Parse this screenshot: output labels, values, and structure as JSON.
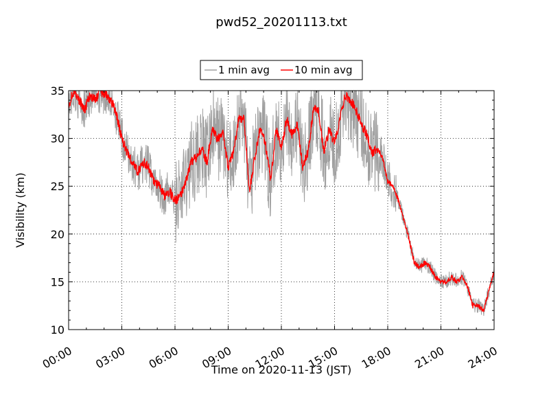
{
  "chart_data": {
    "type": "line",
    "title": "pwd52_20201113.txt",
    "xlabel": "Time on 2020-11-13 (JST)",
    "ylabel": "Visibility (km)",
    "x_unit": "hours",
    "xlim": [
      0,
      24
    ],
    "ylim": [
      10,
      35
    ],
    "x_ticks": [
      0,
      3,
      6,
      9,
      12,
      15,
      18,
      21,
      24
    ],
    "x_tick_labels": [
      "00:00",
      "03:00",
      "06:00",
      "09:00",
      "12:00",
      "15:00",
      "18:00",
      "21:00",
      "24:00"
    ],
    "y_ticks": [
      10,
      15,
      20,
      25,
      30,
      35
    ],
    "y_tick_labels": [
      "10",
      "15",
      "20",
      "25",
      "30",
      "35"
    ],
    "grid": true,
    "legend_position": "top-center, above plot",
    "series": [
      {
        "name": "1 min avg",
        "color": "#a0a0a0",
        "noise": "high",
        "x": [
          0,
          0.3,
          0.6,
          0.9,
          1.2,
          1.5,
          1.8,
          2.1,
          2.4,
          2.7,
          3.0,
          3.3,
          3.6,
          3.9,
          4.2,
          4.5,
          4.8,
          5.1,
          5.4,
          5.7,
          6.0,
          6.3,
          6.6,
          6.9,
          7.2,
          7.5,
          7.8,
          8.1,
          8.4,
          8.7,
          9.0,
          9.3,
          9.6,
          9.9,
          10.2,
          10.5,
          10.8,
          11.1,
          11.4,
          11.7,
          12.0,
          12.3,
          12.6,
          12.9,
          13.2,
          13.5,
          13.8,
          14.1,
          14.4,
          14.7,
          15.0,
          15.3,
          15.6,
          15.9,
          16.2,
          16.5,
          16.8,
          17.1,
          17.4,
          17.7,
          18.0,
          18.3,
          18.6,
          18.9,
          19.2,
          19.5,
          19.8,
          20.1,
          20.4,
          20.7,
          21.0,
          21.3,
          21.6,
          21.9,
          22.2,
          22.5,
          22.8,
          23.1,
          23.4,
          23.7,
          24.0
        ],
        "y": [
          33.5,
          35,
          34,
          33,
          34.5,
          34,
          35,
          34.5,
          34,
          32.5,
          30,
          28.5,
          27.5,
          26.5,
          27.5,
          27,
          25.5,
          25,
          24,
          24.5,
          23.5,
          24,
          25.5,
          27.5,
          28,
          29,
          27.5,
          31,
          30,
          30.5,
          27,
          28.5,
          32,
          32,
          24.5,
          28,
          31,
          29.5,
          25.5,
          31,
          29,
          32,
          30.5,
          31.5,
          27,
          28.5,
          33,
          33,
          28.5,
          31,
          29.5,
          32,
          34.5,
          34,
          33,
          31.5,
          30.5,
          28.5,
          29,
          28,
          25.5,
          25,
          23.5,
          21.5,
          19.5,
          17,
          16.5,
          17,
          16.5,
          15.5,
          15,
          15,
          15.5,
          15,
          15.5,
          14.5,
          12.5,
          12.5,
          12,
          14,
          16
        ]
      },
      {
        "name": "10 min avg",
        "color": "#ff0000",
        "noise": "low",
        "x": [
          0,
          0.3,
          0.6,
          0.9,
          1.2,
          1.5,
          1.8,
          2.1,
          2.4,
          2.7,
          3.0,
          3.3,
          3.6,
          3.9,
          4.2,
          4.5,
          4.8,
          5.1,
          5.4,
          5.7,
          6.0,
          6.3,
          6.6,
          6.9,
          7.2,
          7.5,
          7.8,
          8.1,
          8.4,
          8.7,
          9.0,
          9.3,
          9.6,
          9.9,
          10.2,
          10.5,
          10.8,
          11.1,
          11.4,
          11.7,
          12.0,
          12.3,
          12.6,
          12.9,
          13.2,
          13.5,
          13.8,
          14.1,
          14.4,
          14.7,
          15.0,
          15.3,
          15.6,
          15.9,
          16.2,
          16.5,
          16.8,
          17.1,
          17.4,
          17.7,
          18.0,
          18.3,
          18.6,
          18.9,
          19.2,
          19.5,
          19.8,
          20.1,
          20.4,
          20.7,
          21.0,
          21.3,
          21.6,
          21.9,
          22.2,
          22.5,
          22.8,
          23.1,
          23.4,
          23.7,
          24.0
        ],
        "y": [
          33.5,
          35,
          34,
          33,
          34.5,
          34,
          35,
          34.5,
          34,
          32.5,
          30,
          28.5,
          27.5,
          26.5,
          27.5,
          27,
          25.5,
          25,
          24,
          24.5,
          23.5,
          24,
          25.5,
          27.5,
          28,
          29,
          27.5,
          31,
          30,
          30.5,
          27,
          28.5,
          32,
          32,
          24.5,
          28,
          31,
          29.5,
          25.5,
          31,
          29,
          32,
          30.5,
          31.5,
          27,
          28.5,
          33,
          33,
          28.5,
          31,
          29.5,
          32,
          34.5,
          34,
          33,
          31.5,
          30.5,
          28.5,
          29,
          28,
          25.5,
          25,
          23.5,
          21.5,
          19.5,
          17,
          16.5,
          17,
          16.5,
          15.5,
          15,
          15,
          15.5,
          15,
          15.5,
          14.5,
          12.5,
          12.5,
          12,
          14,
          16
        ]
      }
    ]
  }
}
